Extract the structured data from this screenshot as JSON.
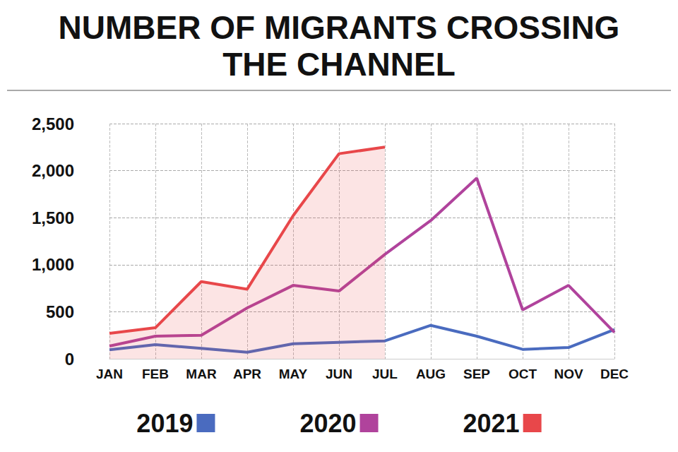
{
  "chart_data": {
    "type": "line",
    "title": "NUMBER OF MIGRANTS CROSSING\nTHE CHANNEL",
    "categories": [
      "JAN",
      "FEB",
      "MAR",
      "APR",
      "MAY",
      "JUN",
      "JUL",
      "AUG",
      "SEP",
      "OCT",
      "NOV",
      "DEC"
    ],
    "series": [
      {
        "name": "2019",
        "color": "#4a6bbf",
        "values": [
          95,
          150,
          110,
          70,
          160,
          175,
          190,
          355,
          240,
          100,
          120,
          310
        ]
      },
      {
        "name": "2020",
        "color": "#b0439c",
        "values": [
          135,
          240,
          250,
          540,
          780,
          720,
          1110,
          1470,
          1920,
          520,
          780,
          280
        ]
      },
      {
        "name": "2021",
        "color": "#e8474a",
        "values": [
          270,
          330,
          820,
          740,
          1520,
          2180,
          2250,
          null,
          null,
          null,
          null,
          null
        ]
      }
    ],
    "ylim": [
      0,
      2500
    ],
    "yticks": [
      0,
      500,
      1000,
      1500,
      2000,
      2500
    ],
    "grid": true,
    "legend": "bottom",
    "marker": "none"
  }
}
